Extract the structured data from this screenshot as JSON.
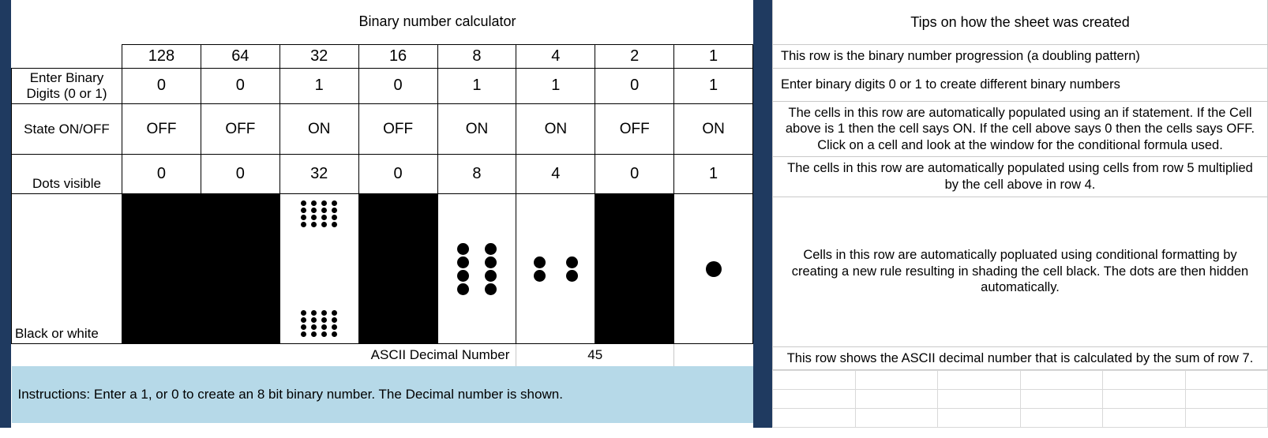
{
  "colors": {
    "gutter": "#1f3a60",
    "instructions_bg": "#b6d9e8",
    "cell_border_strong": "#000000",
    "cell_border_light": "#c9c9c9",
    "black": "#000000",
    "white": "#ffffff"
  },
  "left": {
    "title": "Binary number calculator",
    "row_labels": {
      "digits": "Enter Binary Digits (0 or 1)",
      "state": "State ON/OFF",
      "dots": "Dots visible",
      "bw": "Black or white"
    },
    "place_values": [
      128,
      64,
      32,
      16,
      8,
      4,
      2,
      1
    ],
    "binary_digits": [
      0,
      0,
      1,
      0,
      1,
      1,
      0,
      1
    ],
    "states": [
      "OFF",
      "OFF",
      "ON",
      "OFF",
      "ON",
      "ON",
      "OFF",
      "ON"
    ],
    "dots_visible": [
      0,
      0,
      32,
      0,
      8,
      4,
      0,
      1
    ],
    "bw_fill": [
      "black",
      "black",
      "white",
      "black",
      "white",
      "white",
      "black",
      "white"
    ],
    "dot_specs": [
      null,
      null,
      {
        "variant": "split",
        "groups": [
          {
            "rows": 4,
            "cols": 4,
            "size": "sm",
            "gap": "tight"
          },
          {
            "rows": 4,
            "cols": 4,
            "size": "sm",
            "gap": "tight"
          }
        ]
      },
      null,
      {
        "variant": "center",
        "groups": [
          {
            "rows": 4,
            "cols": 2,
            "size": "md",
            "gap": "med"
          }
        ]
      },
      {
        "variant": "center",
        "groups": [
          {
            "rows": 2,
            "cols": 2,
            "size": "md",
            "gap": "wide"
          }
        ]
      },
      null,
      {
        "variant": "center",
        "groups": [
          {
            "rows": 1,
            "cols": 1,
            "size": "lg",
            "gap": "med"
          }
        ]
      }
    ],
    "ascii_label": "ASCII Decimal Number",
    "ascii_value": 45,
    "instructions": "Instructions: Enter a 1, or 0  to create an 8 bit binary number. The Decimal number is shown."
  },
  "right": {
    "title": "Tips on how the sheet was created",
    "tips": [
      "This row is the binary number progression (a doubling pattern)",
      "Enter binary digits  0 or 1 to create different binary numbers",
      "The cells in this row are automatically populated using an if statement.  If the Cell above is 1 then the cell says ON. If the cell above says 0 then the cells says OFF. Click  on a cell and look at the window for the conditional formula used.",
      "The cells in this row are automatically populated using cells from row 5 multiplied by the cell above in row 4.",
      "Cells in this row are automatically popluated using conditional formatting by creating a new rule resulting in shading the cell black. The dots are then hidden automatically.",
      "This row shows the ASCII decimal number that is calculated by the sum of row 7."
    ]
  }
}
